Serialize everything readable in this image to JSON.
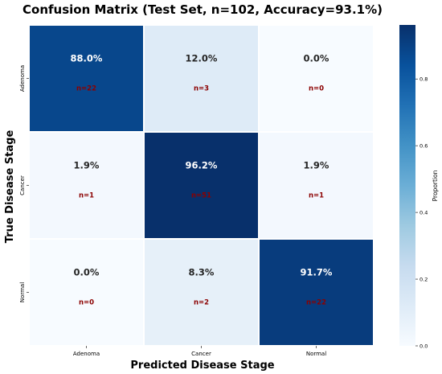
{
  "chart_data": {
    "type": "heatmap",
    "title": "Confusion Matrix (Test Set, n=102, Accuracy=93.1%)",
    "xlabel": "Predicted Disease Stage",
    "ylabel": "True Disease Stage",
    "x_categories": [
      "Adenoma",
      "Cancer",
      "Normal"
    ],
    "y_categories": [
      "Adenoma",
      "Cancer",
      "Normal"
    ],
    "values": [
      [
        0.88,
        0.12,
        0.0
      ],
      [
        0.019,
        0.962,
        0.019
      ],
      [
        0.0,
        0.083,
        0.917
      ]
    ],
    "cell_labels": [
      [
        "88.0%",
        "12.0%",
        "0.0%"
      ],
      [
        "1.9%",
        "96.2%",
        "1.9%"
      ],
      [
        "0.0%",
        "8.3%",
        "91.7%"
      ]
    ],
    "count_labels": [
      [
        "n=22",
        "n=3",
        "n=0"
      ],
      [
        "n=1",
        "n=51",
        "n=1"
      ],
      [
        "n=0",
        "n=2",
        "n=22"
      ]
    ],
    "colorbar": {
      "label": "Proportion",
      "ticks": [
        "0.0",
        "0.2",
        "0.4",
        "0.6",
        "0.8"
      ],
      "tick_values": [
        0.0,
        0.2,
        0.4,
        0.6,
        0.8
      ],
      "range": [
        0.0,
        0.962
      ],
      "colormap": "Blues"
    },
    "colors": {
      "count_text": "#8b0000",
      "cell_border": "#ffffff"
    }
  }
}
